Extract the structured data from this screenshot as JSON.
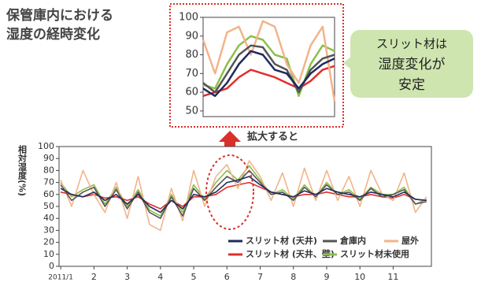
{
  "title_lines": [
    "保管庫内における",
    "湿度の経時変化"
  ],
  "callout_lines": [
    "スリット材は",
    "湿度変化が",
    "安定"
  ],
  "zoom_label": "拡大すると",
  "chart_data": [
    {
      "type": "line",
      "ylabel": "相対湿度(%)",
      "x": [
        1,
        1.33,
        1.67,
        2,
        2.33,
        2.67,
        3,
        3.33,
        3.67,
        4,
        4.33,
        4.67,
        5,
        5.33,
        5.67,
        6,
        6.33,
        6.67,
        7,
        7.33,
        7.67,
        8,
        8.33,
        8.67,
        9,
        9.33,
        9.67,
        10,
        10.33,
        10.67,
        11,
        11.33,
        11.67,
        12
      ],
      "xlim": [
        0.95,
        12.15
      ],
      "xticks": [
        {
          "value": 1,
          "label": "2011/1"
        },
        2,
        3,
        4,
        5,
        6,
        7,
        8,
        9,
        10,
        11
      ],
      "ylim": [
        0,
        100
      ],
      "yticks": [
        0,
        10,
        20,
        30,
        40,
        50,
        60,
        70,
        80,
        90,
        100
      ],
      "legend": true,
      "series": [
        {
          "name": "スリット材 (天井)",
          "color": "#1f2a5c",
          "values": [
            65,
            60,
            58,
            62,
            55,
            60,
            52,
            60,
            50,
            45,
            55,
            48,
            60,
            58,
            62,
            70,
            72,
            75,
            68,
            62,
            60,
            58,
            63,
            60,
            65,
            62,
            60,
            58,
            62,
            60,
            58,
            62,
            56,
            55
          ]
        },
        {
          "name": "倉庫内",
          "color": "#555555",
          "values": [
            68,
            55,
            62,
            66,
            50,
            64,
            48,
            62,
            45,
            40,
            58,
            42,
            65,
            55,
            66,
            75,
            70,
            80,
            70,
            60,
            62,
            55,
            66,
            58,
            68,
            60,
            62,
            55,
            65,
            58,
            60,
            64,
            52,
            54
          ]
        },
        {
          "name": "屋外",
          "color": "#f2b48a",
          "values": [
            72,
            50,
            80,
            60,
            45,
            70,
            40,
            75,
            35,
            30,
            65,
            38,
            80,
            50,
            75,
            85,
            65,
            88,
            75,
            55,
            78,
            50,
            82,
            55,
            80,
            55,
            75,
            50,
            80,
            60,
            55,
            78,
            45,
            58
          ]
        },
        {
          "name": "スリット材 (天井、壁)",
          "color": "#e0302a",
          "values": [
            62,
            60,
            58,
            60,
            57,
            58,
            55,
            58,
            52,
            48,
            55,
            50,
            58,
            58,
            60,
            66,
            68,
            70,
            66,
            62,
            60,
            58,
            60,
            60,
            62,
            60,
            58,
            58,
            60,
            58,
            57,
            60,
            56,
            55
          ]
        },
        {
          "name": "スリット材未使用",
          "color": "#8cbf4a",
          "values": [
            70,
            58,
            64,
            68,
            52,
            66,
            50,
            64,
            47,
            42,
            60,
            45,
            68,
            56,
            70,
            80,
            72,
            84,
            72,
            60,
            64,
            56,
            68,
            58,
            70,
            60,
            64,
            56,
            66,
            60,
            60,
            66,
            52,
            56
          ]
        }
      ]
    },
    {
      "type": "line",
      "x": [
        5.8,
        5.9,
        6.0,
        6.1,
        6.2,
        6.3,
        6.4,
        6.5,
        6.6,
        6.7,
        6.8,
        6.9
      ],
      "xlim": [
        5.8,
        6.9
      ],
      "ylim": [
        47,
        100
      ],
      "yticks": [
        50,
        60,
        70,
        80,
        90,
        100
      ],
      "legend": false,
      "series": [
        {
          "color": "#1f2a5c",
          "values": [
            62,
            58,
            65,
            75,
            82,
            80,
            72,
            70,
            62,
            70,
            75,
            78
          ]
        },
        {
          "color": "#555555",
          "values": [
            65,
            60,
            70,
            80,
            85,
            84,
            75,
            72,
            60,
            72,
            78,
            80
          ]
        },
        {
          "color": "#f2b48a",
          "values": [
            88,
            70,
            92,
            95,
            80,
            98,
            95,
            75,
            65,
            85,
            95,
            55
          ]
        },
        {
          "color": "#e0302a",
          "values": [
            58,
            60,
            62,
            68,
            72,
            70,
            68,
            65,
            62,
            66,
            72,
            74
          ]
        },
        {
          "color": "#8cbf4a",
          "values": [
            64,
            62,
            75,
            85,
            90,
            88,
            80,
            78,
            58,
            75,
            85,
            82
          ]
        }
      ]
    }
  ]
}
